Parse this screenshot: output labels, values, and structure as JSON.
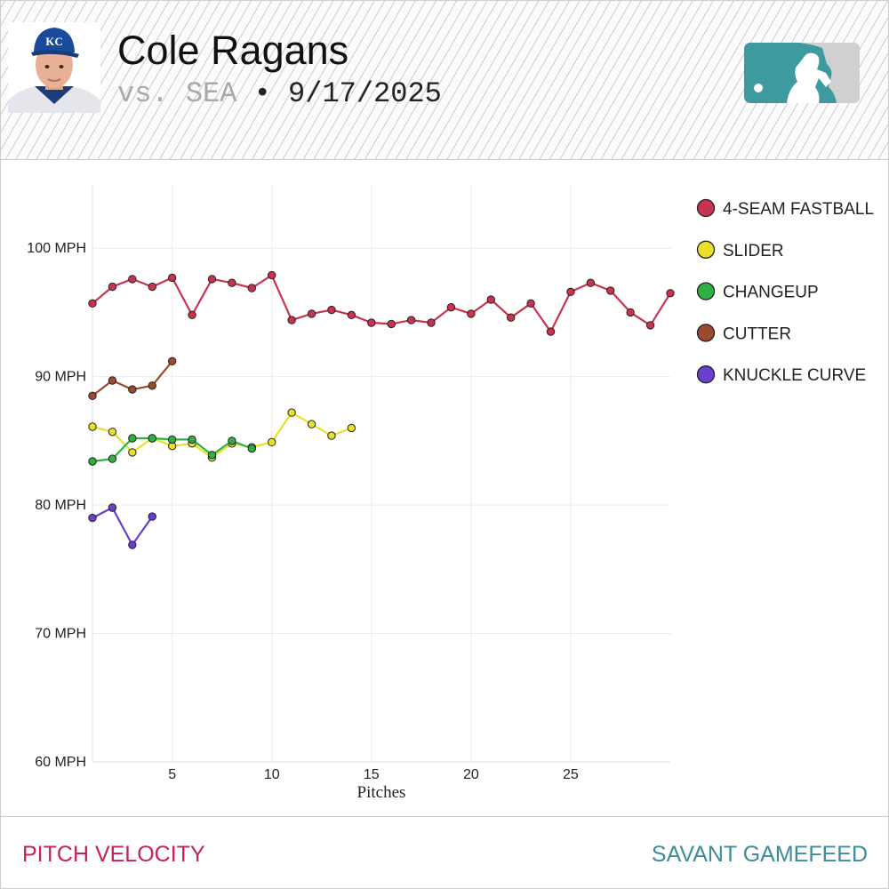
{
  "header": {
    "player_name": "Cole Ragans",
    "opponent": "vs. SEA",
    "separator": "•",
    "game_date": "9/17/2025",
    "avatar_icon": "player-headshot-icon",
    "logo_icon": "mlb-logo-icon",
    "logo_color": "#3d9a9e"
  },
  "chart_data": {
    "type": "line",
    "title": "",
    "xlabel": "Pitches",
    "ylabel": "",
    "xlim": [
      1,
      30
    ],
    "ylim": [
      60,
      105
    ],
    "x_ticks": [
      5,
      10,
      15,
      20,
      25
    ],
    "y_ticks": [
      60,
      70,
      80,
      90,
      100
    ],
    "y_tick_labels": [
      "60 MPH",
      "70 MPH",
      "80 MPH",
      "90 MPH",
      "100 MPH"
    ],
    "grid": true,
    "legend_position": "right",
    "series": [
      {
        "name": "4-SEAM FASTBALL",
        "color": "#c8344f",
        "x": [
          1,
          2,
          3,
          4,
          5,
          6,
          7,
          8,
          9,
          10,
          11,
          12,
          13,
          14,
          15,
          16,
          17,
          18,
          19,
          20,
          21,
          22,
          23,
          24,
          25,
          26,
          27,
          28,
          29,
          30
        ],
        "values": [
          95.7,
          97.0,
          97.6,
          97.0,
          97.7,
          94.8,
          97.6,
          97.3,
          96.9,
          97.9,
          94.4,
          94.9,
          95.2,
          94.8,
          94.2,
          94.1,
          94.4,
          94.2,
          95.4,
          94.9,
          96.0,
          94.6,
          95.7,
          93.5,
          96.6,
          97.3,
          96.7,
          95.0,
          94.0,
          96.5
        ]
      },
      {
        "name": "SLIDER",
        "color": "#e8e02a",
        "x": [
          1,
          2,
          3,
          4,
          5,
          6,
          7,
          8,
          9,
          10,
          11,
          12,
          13,
          14
        ],
        "values": [
          86.1,
          85.7,
          84.1,
          85.2,
          84.6,
          84.8,
          83.7,
          84.8,
          84.5,
          84.9,
          87.2,
          86.3,
          85.4,
          86.0
        ]
      },
      {
        "name": "CHANGEUP",
        "color": "#2fb043",
        "x": [
          1,
          2,
          3,
          4,
          5,
          6,
          7,
          8,
          9
        ],
        "values": [
          83.4,
          83.6,
          85.2,
          85.2,
          85.1,
          85.1,
          83.9,
          85.0,
          84.4
        ]
      },
      {
        "name": "CUTTER",
        "color": "#9a4a2e",
        "x": [
          1,
          2,
          3,
          4,
          5
        ],
        "values": [
          88.5,
          89.7,
          89.0,
          89.3,
          91.2
        ]
      },
      {
        "name": "KNUCKLE CURVE",
        "color": "#6a3fd0",
        "x": [
          1,
          2,
          3,
          4
        ],
        "values": [
          79.0,
          79.8,
          76.9,
          79.1
        ]
      }
    ]
  },
  "footer": {
    "left_label": "PITCH VELOCITY",
    "right_label": "SAVANT GAMEFEED"
  }
}
